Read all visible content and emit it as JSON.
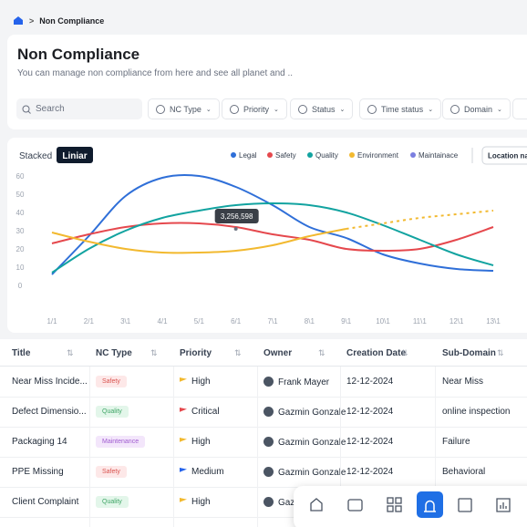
{
  "breadcrumb": {
    "current": "Non Compliance"
  },
  "header": {
    "title": "Non Compliance",
    "subtitle": "You can manage non compliance from here and see all planet and .."
  },
  "filters": {
    "search": "Search",
    "buttons": [
      "NC Type",
      "Priority",
      "Status",
      "Time status",
      "Domain"
    ]
  },
  "chart_data": {
    "type": "line",
    "modes": [
      "Stacked",
      "Liniar"
    ],
    "location": "Location na",
    "categories": [
      "1/1",
      "2/1",
      "3\\1",
      "4/1",
      "5/1",
      "6/1",
      "7\\1",
      "8\\1",
      "9\\1",
      "10\\1",
      "11\\1",
      "12\\1",
      "13\\1"
    ],
    "series": [
      {
        "name": "Legal",
        "color": "#2f6fd8",
        "values": [
          6,
          27,
          49,
          59,
          60,
          54,
          44,
          32,
          26,
          17,
          12,
          9,
          8
        ]
      },
      {
        "name": "Safety",
        "color": "#e5484d",
        "values": [
          23,
          28,
          32,
          34,
          34,
          32,
          28,
          25,
          20,
          19,
          20,
          25,
          32
        ]
      },
      {
        "name": "Quality",
        "color": "#12a3a0",
        "values": [
          7,
          20,
          30,
          37,
          41,
          44,
          45,
          44,
          40,
          33,
          25,
          17,
          11
        ]
      },
      {
        "name": "Environment",
        "color": "#f2b92f",
        "values": [
          29,
          24,
          20,
          18,
          18,
          19,
          22,
          27,
          31,
          34,
          37,
          39,
          41
        ],
        "dashed_after": 8
      },
      {
        "name": "Maintainace",
        "color": "#7b7fe0",
        "values": [
          null,
          null,
          null,
          null,
          null,
          null,
          null,
          null,
          null,
          null,
          null,
          null,
          null
        ]
      }
    ],
    "ylim": [
      0,
      60
    ],
    "yticks": [
      0,
      10,
      20,
      30,
      40,
      50,
      60
    ],
    "tooltip": {
      "label": "3,256,598",
      "category_index": 5,
      "value": 31
    }
  },
  "table": {
    "headers": [
      "Title",
      "NC Type",
      "Priority",
      "Owner",
      "Creation Date",
      "Sub-Domain"
    ],
    "rows": [
      [
        "Near Miss Incide...",
        "Safety",
        "High",
        "Frank Mayer",
        "12-12-2024",
        "Near Miss"
      ],
      [
        "Defect Dimensio...",
        "Quality",
        "Critical",
        "Gazmin Gonzale",
        "12-12-2024",
        "online inspection"
      ],
      [
        "Packaging 14",
        "Maintenance",
        "High",
        "Gazmin Gonzale",
        "12-12-2024",
        "Failure"
      ],
      [
        "PPE Missing",
        "Safety",
        "Medium",
        "Gazmin Gonzale",
        "12-12-2024",
        "Behavioral"
      ],
      [
        "Client Complaint",
        "Quality",
        "High",
        "Gaz"
      ]
    ]
  }
}
